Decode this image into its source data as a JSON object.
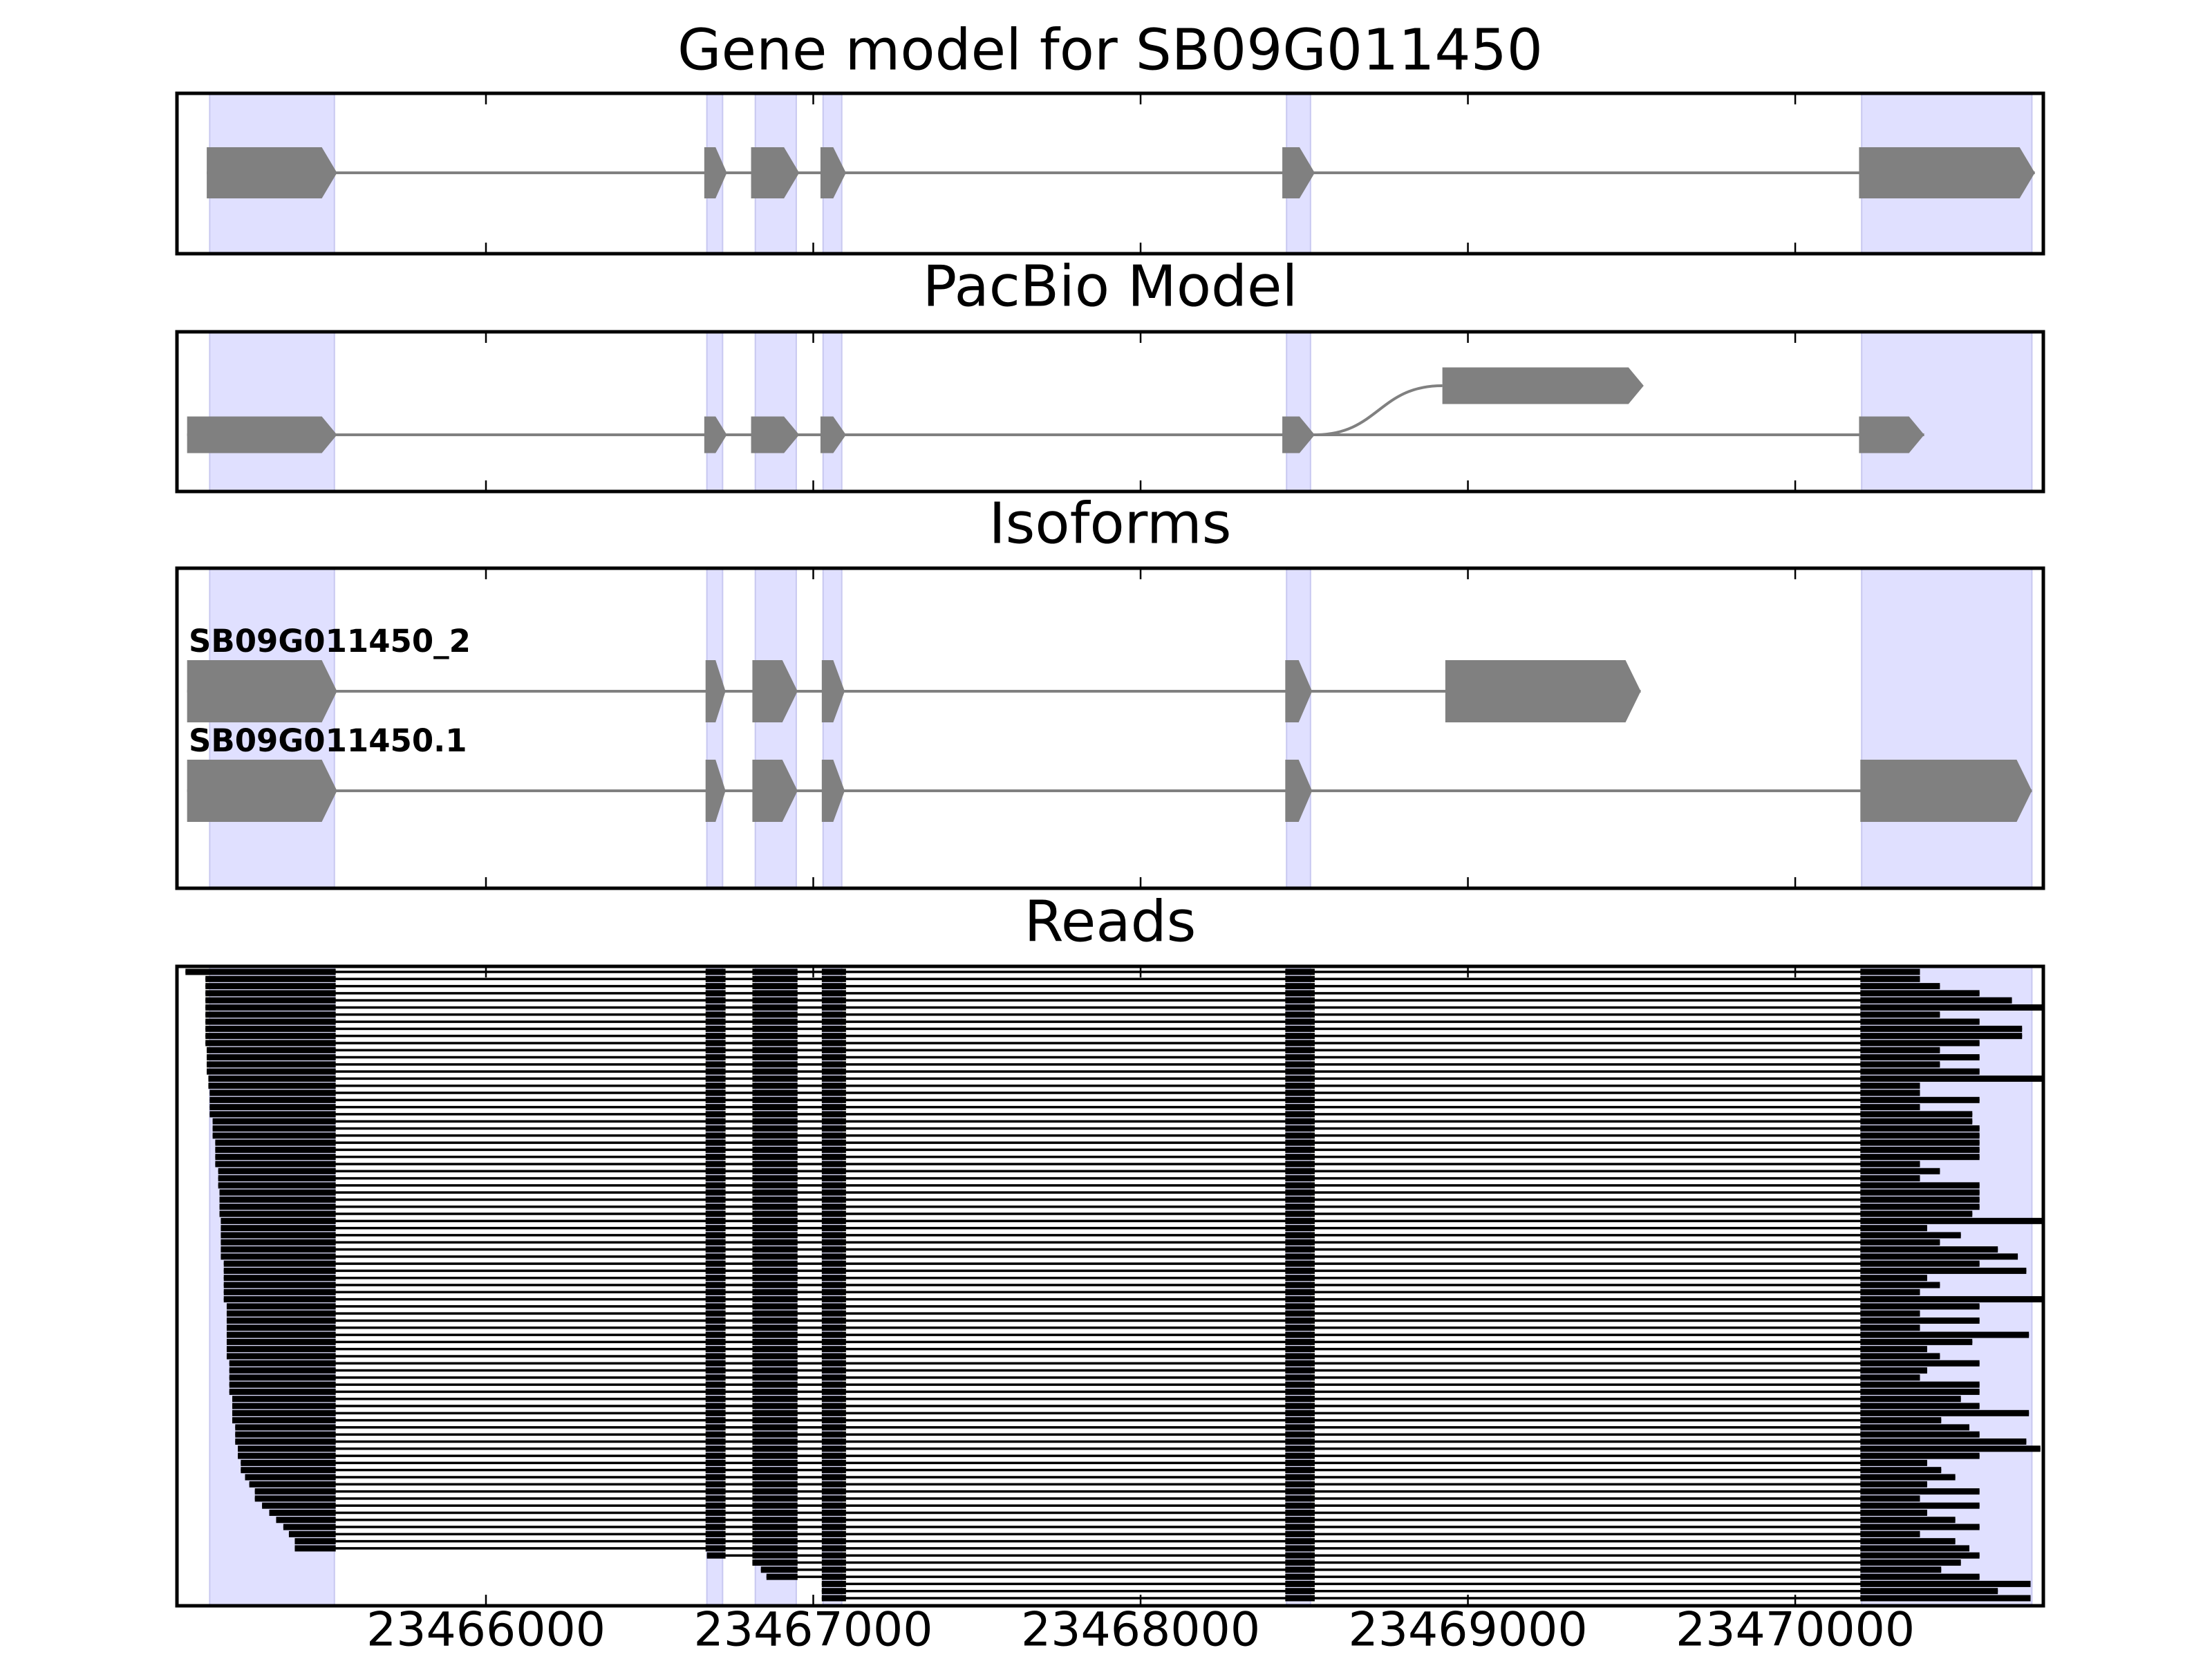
{
  "shaded_regions": [
    [
      23465156,
      23465537
    ],
    [
      23466675,
      23466723
    ],
    [
      23466823,
      23466948
    ],
    [
      23467030,
      23467087
    ],
    [
      23468446,
      23468519
    ],
    [
      23470203,
      23470723
    ]
  ],
  "shade_color": "#e0e0ff",
  "chart_data": [
    {
      "type": "transcripts",
      "title": "Gene model for SB09G011450",
      "color": "#808080",
      "xlim": [
        23465056,
        23470758
      ],
      "xticks": [
        23466000,
        23467000,
        23468000,
        23469000,
        23470000
      ],
      "transcripts": [
        {
          "blocks": [
            [
              23465147,
              23465545
            ],
            [
              23466667,
              23466736
            ],
            [
              23466810,
              23466957
            ],
            [
              23467022,
              23467100
            ],
            [
              23468433,
              23468532
            ],
            [
              23470195,
              23470732
            ]
          ]
        }
      ]
    },
    {
      "type": "transcripts",
      "title": "PacBio Model",
      "color": "#808080",
      "xlim": [
        23465056,
        23470758
      ],
      "xticks": [
        23466000,
        23467000,
        23468000,
        23469000,
        23470000
      ],
      "transcripts": [
        {
          "blocks": [
            [
              23465087,
              23465545
            ],
            [
              23466667,
              23466736
            ],
            [
              23466810,
              23466957
            ],
            [
              23467022,
              23467100
            ],
            [
              23468433,
              23468532
            ],
            [
              23470195,
              23470394
            ]
          ]
        },
        {
          "blocks": [
            [
              23468922,
              23469537
            ]
          ]
        }
      ]
    },
    {
      "type": "transcripts",
      "title": "Isoforms",
      "color": "#808080",
      "xlim": [
        23465056,
        23470758
      ],
      "xticks": [
        23466000,
        23467000,
        23468000,
        23469000,
        23470000
      ],
      "transcripts": [
        {
          "name": "SB09G011450_2",
          "blocks": [
            [
              23465087,
              23465545
            ],
            [
              23466671,
              23466732
            ],
            [
              23466814,
              23466952
            ],
            [
              23467026,
              23467096
            ],
            [
              23468442,
              23468524
            ],
            [
              23468931,
              23469528
            ]
          ]
        },
        {
          "name": "SB09G011450.1",
          "blocks": [
            [
              23465087,
              23465545
            ],
            [
              23466671,
              23466732
            ],
            [
              23466814,
              23466952
            ],
            [
              23467026,
              23467096
            ],
            [
              23468442,
              23468524
            ],
            [
              23470199,
              23470723
            ]
          ]
        }
      ]
    },
    {
      "type": "reads",
      "title": "Reads",
      "color": "#000000",
      "xlim": [
        23465056,
        23470758
      ],
      "xticks": [
        23466000,
        23467000,
        23468000,
        23469000,
        23470000
      ],
      "exons": [
        [
          23465082,
          23465541
        ],
        [
          23466671,
          23466732
        ],
        [
          23466814,
          23466952
        ],
        [
          23467026,
          23467100
        ],
        [
          23468442,
          23468532
        ],
        [
          23470199,
          23470758
        ]
      ],
      "reads": [
        [
          23465082,
          23470381
        ],
        [
          23465143,
          23470381
        ],
        [
          23465143,
          23470442
        ],
        [
          23465143,
          23470563
        ],
        [
          23465143,
          23470662
        ],
        [
          23465143,
          23470758
        ],
        [
          23465143,
          23470442
        ],
        [
          23465143,
          23470563
        ],
        [
          23465143,
          23470693
        ],
        [
          23465143,
          23470693
        ],
        [
          23465143,
          23470563
        ],
        [
          23465147,
          23470442
        ],
        [
          23465147,
          23470563
        ],
        [
          23465147,
          23470442
        ],
        [
          23465147,
          23470563
        ],
        [
          23465152,
          23470758
        ],
        [
          23465152,
          23470381
        ],
        [
          23465156,
          23470381
        ],
        [
          23465156,
          23470563
        ],
        [
          23465156,
          23470381
        ],
        [
          23465156,
          23470541
        ],
        [
          23465165,
          23470541
        ],
        [
          23465165,
          23470563
        ],
        [
          23465165,
          23470563
        ],
        [
          23465173,
          23470563
        ],
        [
          23465173,
          23470563
        ],
        [
          23465173,
          23470563
        ],
        [
          23465173,
          23470381
        ],
        [
          23465182,
          23470442
        ],
        [
          23465182,
          23470381
        ],
        [
          23465182,
          23470563
        ],
        [
          23465186,
          23470563
        ],
        [
          23465186,
          23470563
        ],
        [
          23465186,
          23470563
        ],
        [
          23465186,
          23470541
        ],
        [
          23465190,
          23470758
        ],
        [
          23465190,
          23470403
        ],
        [
          23465190,
          23470506
        ],
        [
          23465190,
          23470442
        ],
        [
          23465190,
          23470619
        ],
        [
          23465190,
          23470680
        ],
        [
          23465199,
          23470563
        ],
        [
          23465199,
          23470706
        ],
        [
          23465199,
          23470403
        ],
        [
          23465199,
          23470442
        ],
        [
          23465199,
          23470381
        ],
        [
          23465199,
          23470758
        ],
        [
          23465208,
          23470563
        ],
        [
          23465208,
          23470381
        ],
        [
          23465208,
          23470563
        ],
        [
          23465208,
          23470381
        ],
        [
          23465208,
          23470714
        ],
        [
          23465208,
          23470541
        ],
        [
          23465208,
          23470403
        ],
        [
          23465208,
          23470442
        ],
        [
          23465216,
          23470563
        ],
        [
          23465216,
          23470403
        ],
        [
          23465216,
          23470381
        ],
        [
          23465216,
          23470563
        ],
        [
          23465216,
          23470563
        ],
        [
          23465225,
          23470506
        ],
        [
          23465225,
          23470563
        ],
        [
          23465225,
          23470714
        ],
        [
          23465225,
          23470446
        ],
        [
          23465234,
          23470532
        ],
        [
          23465234,
          23470563
        ],
        [
          23465234,
          23470706
        ],
        [
          23465242,
          23470749
        ],
        [
          23465242,
          23470563
        ],
        [
          23465251,
          23470403
        ],
        [
          23465251,
          23470446
        ],
        [
          23465264,
          23470489
        ],
        [
          23465277,
          23470403
        ],
        [
          23465294,
          23470563
        ],
        [
          23465294,
          23470381
        ],
        [
          23465316,
          23470563
        ],
        [
          23465338,
          23470403
        ],
        [
          23465359,
          23470489
        ],
        [
          23465381,
          23470563
        ],
        [
          23465398,
          23470381
        ],
        [
          23465416,
          23470489
        ],
        [
          23465416,
          23470532
        ],
        [
          23466675,
          23470563
        ],
        [
          23466814,
          23470506
        ],
        [
          23466840,
          23470446
        ],
        [
          23466857,
          23470563
        ],
        [
          23467026,
          23470719
        ],
        [
          23467026,
          23470619
        ],
        [
          23467026,
          23470719
        ]
      ]
    }
  ]
}
